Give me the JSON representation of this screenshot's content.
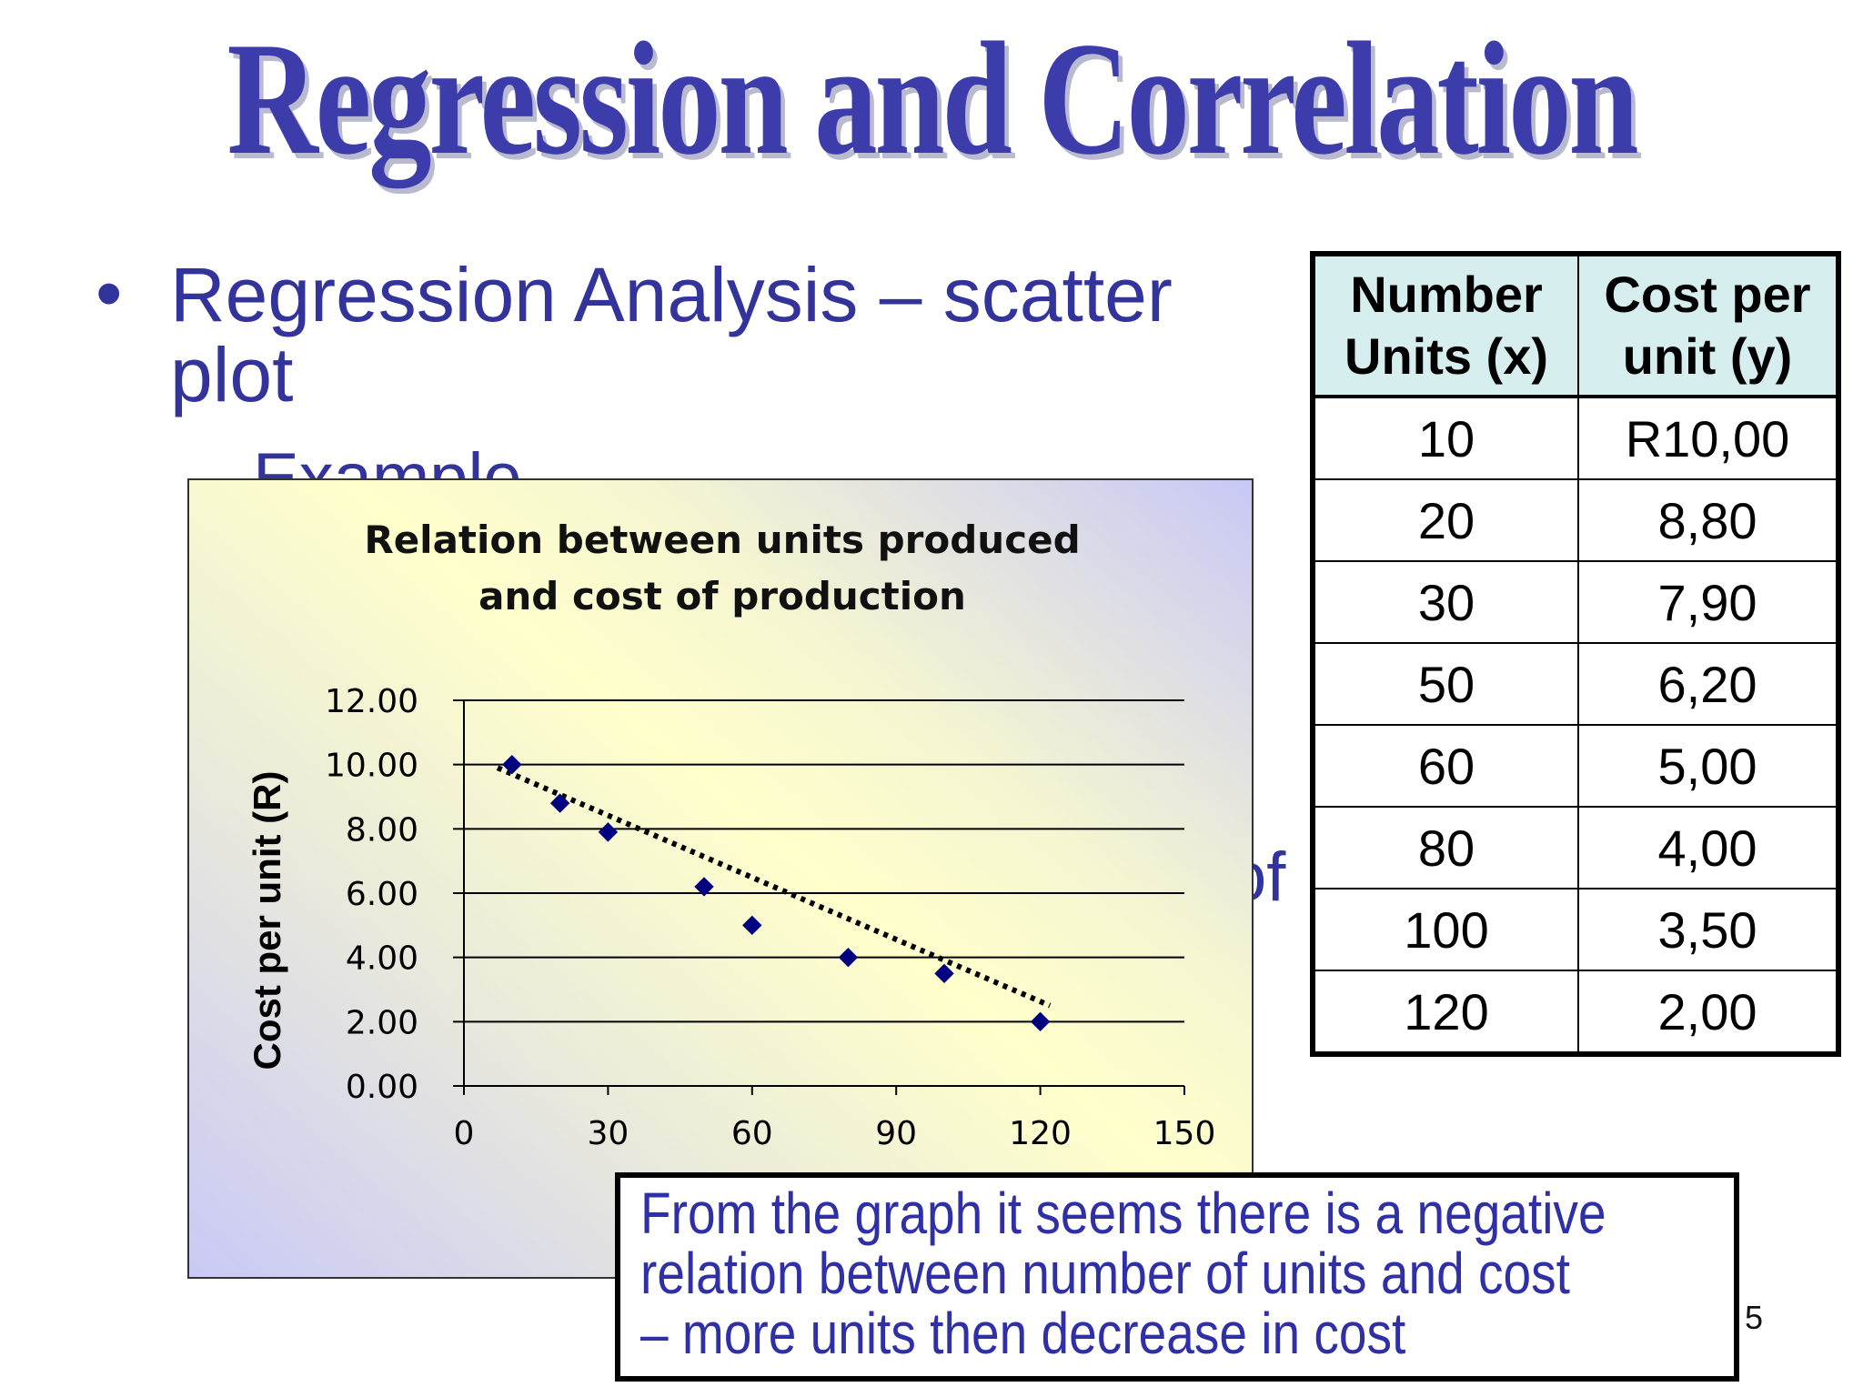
{
  "slide": {
    "title": "Regression and Correlation",
    "bullet_main": "Regression Analysis – scatter plot",
    "bullet_sub": "Example",
    "hidden_fragment": "of",
    "page_number": "5"
  },
  "table": {
    "headers": [
      [
        "Number",
        "Units (x)"
      ],
      [
        "Cost per",
        "unit (y)"
      ]
    ],
    "rows": [
      [
        "10",
        "R10,00"
      ],
      [
        "20",
        "8,80"
      ],
      [
        "30",
        "7,90"
      ],
      [
        "50",
        "6,20"
      ],
      [
        "60",
        "5,00"
      ],
      [
        "80",
        "4,00"
      ],
      [
        "100",
        "3,50"
      ],
      [
        "120",
        "2,00"
      ]
    ]
  },
  "note": {
    "lines": [
      "From the graph it seems there is a negative",
      "relation between number of units and cost",
      "– more units then decrease in cost"
    ]
  },
  "chart_data": {
    "type": "scatter",
    "title_lines": [
      "Relation between units produced",
      "and cost of production"
    ],
    "ylabel": "Cost per unit (R)",
    "xlabel": "",
    "xlim": [
      0,
      150
    ],
    "ylim": [
      0,
      12
    ],
    "x_ticks": [
      "0",
      "30",
      "60",
      "90",
      "120",
      "150"
    ],
    "x_tick_values": [
      0,
      30,
      60,
      90,
      120,
      150
    ],
    "y_ticks": [
      "0.00",
      "2.00",
      "4.00",
      "6.00",
      "8.00",
      "10.00",
      "12.00"
    ],
    "y_tick_values": [
      0,
      2,
      4,
      6,
      8,
      10,
      12
    ],
    "grid": "horizontal",
    "points": [
      {
        "x": 10,
        "y": 10.0
      },
      {
        "x": 20,
        "y": 8.8
      },
      {
        "x": 30,
        "y": 7.9
      },
      {
        "x": 50,
        "y": 6.2
      },
      {
        "x": 60,
        "y": 5.0
      },
      {
        "x": 80,
        "y": 4.0
      },
      {
        "x": 100,
        "y": 3.5
      },
      {
        "x": 120,
        "y": 2.0
      }
    ],
    "trendline": {
      "style": "dotted",
      "x_start": 7,
      "y_start": 9.9,
      "x_end": 122,
      "y_end": 2.5
    },
    "marker_color": "#000080"
  }
}
